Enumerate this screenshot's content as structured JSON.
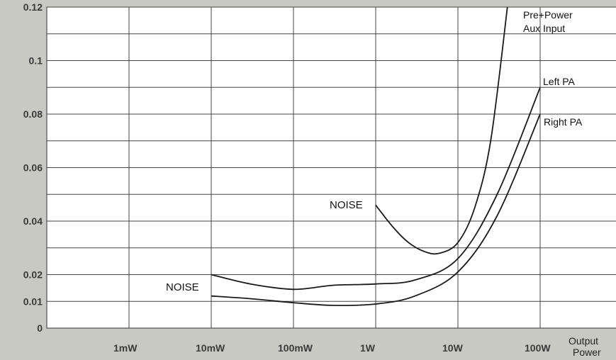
{
  "chart_data": {
    "type": "line",
    "x_scale": "log",
    "x_tick_labels": [
      "1mW",
      "10mW",
      "100mW",
      "1W",
      "10W",
      "100W"
    ],
    "x_ticks": [
      0.001,
      0.01,
      0.1,
      1,
      10,
      100
    ],
    "xlim": [
      0.0001,
      100
    ],
    "xlabel_line1": "Output",
    "xlabel_line2": "Power",
    "y_tick_labels": [
      "0",
      "0.01",
      "0.02",
      "0.04",
      "0.06",
      "0.08",
      "0.1",
      "0.12"
    ],
    "y_tick_values": [
      0,
      0.01,
      0.02,
      0.04,
      0.06,
      0.08,
      0.1,
      0.12
    ],
    "ylim": [
      0,
      0.12
    ],
    "grid": true,
    "series": [
      {
        "name_line1": "Pre+Power",
        "name_line2": "Aux Input",
        "x": [
          1,
          1.6,
          2.5,
          4,
          6,
          10,
          16,
          25,
          40
        ],
        "y": [
          0.046,
          0.038,
          0.032,
          0.0285,
          0.028,
          0.032,
          0.045,
          0.07,
          0.12
        ]
      },
      {
        "name": "Left PA",
        "x": [
          0.01,
          0.03,
          0.1,
          0.3,
          1,
          3,
          10,
          30,
          100
        ],
        "y": [
          0.02,
          0.0165,
          0.0145,
          0.016,
          0.0165,
          0.018,
          0.026,
          0.05,
          0.09
        ]
      },
      {
        "name": "Right PA",
        "x": [
          0.01,
          0.03,
          0.1,
          0.3,
          1,
          3,
          10,
          30,
          100
        ],
        "y": [
          0.012,
          0.011,
          0.0095,
          0.0085,
          0.009,
          0.012,
          0.021,
          0.042,
          0.08
        ]
      }
    ],
    "annotations": [
      {
        "text": "NOISE",
        "x": 0.003,
        "y": 0.015
      },
      {
        "text": "NOISE",
        "x": 0.4,
        "y": 0.045
      }
    ]
  },
  "colors": {
    "background": "#c9c9c4",
    "plot": "#ffffff",
    "lines": "#1a1a1a"
  }
}
